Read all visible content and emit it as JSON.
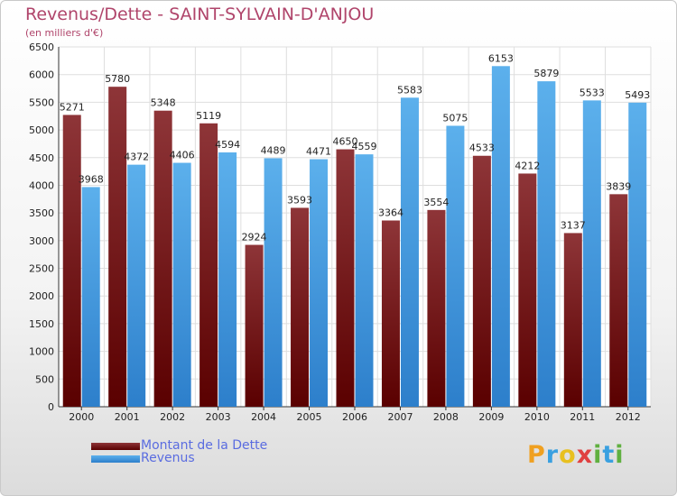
{
  "chart_data": {
    "type": "bar",
    "title": "Revenus/Dette - SAINT-SYLVAIN-D'ANJOU",
    "subtitle": "(en milliers d'€)",
    "categories": [
      "2000",
      "2001",
      "2002",
      "2003",
      "2004",
      "2005",
      "2006",
      "2007",
      "2008",
      "2009",
      "2010",
      "2011",
      "2012"
    ],
    "series": [
      {
        "name": "Montant de la Dette",
        "values": [
          5271,
          5780,
          5348,
          5119,
          2924,
          3593,
          4650,
          3364,
          3554,
          4533,
          4212,
          3137,
          3839
        ]
      },
      {
        "name": "Revenus",
        "values": [
          3968,
          4372,
          4406,
          4594,
          4489,
          4471,
          4559,
          5583,
          5075,
          6153,
          5879,
          5533,
          5493
        ]
      }
    ],
    "ylim": [
      0,
      6500
    ],
    "yticks": [
      0,
      500,
      1000,
      1500,
      2000,
      2500,
      3000,
      3500,
      4000,
      4500,
      5000,
      5500,
      6000,
      6500
    ],
    "grid": true,
    "legend": "bottom-left"
  },
  "colors": {
    "dette_top": "#8e3538",
    "dette_bottom": "#5a0000",
    "revenus_top": "#5cb0ec",
    "revenus_bottom": "#2d7fcb",
    "title": "#b0456b"
  },
  "logo": {
    "letters": [
      "P",
      "r",
      "o",
      "x",
      "i",
      "t",
      "i"
    ],
    "colors": [
      "#f0a020",
      "#3aa0e0",
      "#e8c020",
      "#e04040",
      "#60b040",
      "#3aa0e0",
      "#60b040"
    ]
  }
}
